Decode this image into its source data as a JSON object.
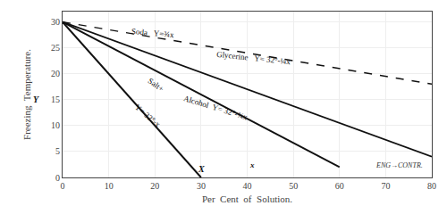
{
  "chart_data": {
    "type": "line",
    "xlabel": "Per  Cent  of  Solution.",
    "ylabel": "Freezing  Temperature.",
    "xlim": [
      0,
      80
    ],
    "ylim": [
      0,
      32
    ],
    "xticks": [
      0,
      10,
      20,
      30,
      40,
      50,
      60,
      70,
      80
    ],
    "yticks": [
      0,
      5,
      10,
      15,
      20,
      25,
      30
    ],
    "grid": true,
    "series": [
      {
        "x": [
          0,
          80
        ],
        "values": [
          30,
          4
        ],
        "line_style": "solid",
        "color": "#111111"
      },
      {
        "x": [
          0,
          80
        ],
        "values": [
          30,
          18
        ],
        "line_style": "dashed",
        "color": "#111111"
      },
      {
        "x": [
          0,
          60
        ],
        "values": [
          30,
          2
        ],
        "line_style": "solid",
        "color": "#111111"
      },
      {
        "x": [
          0,
          30
        ],
        "values": [
          30,
          0
        ],
        "line_style": "solid",
        "color": "#111111"
      }
    ],
    "annotations": [
      "Glycerine   Y= 32°-¼x",
      "Soda   Y=¾x",
      "Alcohol  Y= 32°-¾x",
      "Salt+",
      "Y= 32°-x",
      "X",
      "x",
      "Y",
      "ENG→CONTR."
    ]
  }
}
